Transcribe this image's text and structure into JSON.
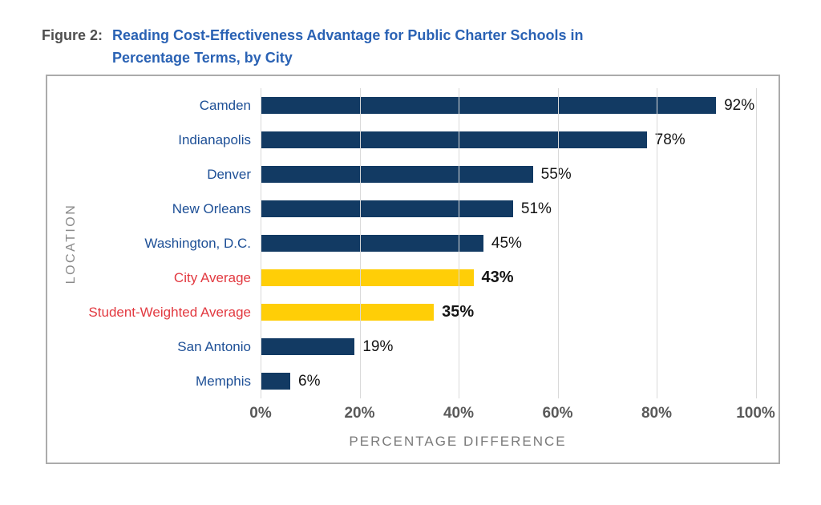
{
  "figure": {
    "label": "Figure 2:",
    "title": "Reading Cost-Effectiveness Advantage for Public Charter Schools in Percentage Terms, by City"
  },
  "chart_data": {
    "type": "bar",
    "orientation": "horizontal",
    "title": "Reading Cost-Effectiveness Advantage for Public Charter Schools in Percentage Terms, by City",
    "xlabel": "PERCENTAGE DIFFERENCE",
    "ylabel": "LOCATION",
    "xlim": [
      0,
      100
    ],
    "xticks": [
      {
        "value": 0,
        "label": "0%"
      },
      {
        "value": 20,
        "label": "20%"
      },
      {
        "value": 40,
        "label": "40%"
      },
      {
        "value": 60,
        "label": "60%"
      },
      {
        "value": 80,
        "label": "80%"
      },
      {
        "value": 100,
        "label": "100%"
      }
    ],
    "grid": "vertical",
    "categories": [
      "Camden",
      "Indianapolis",
      "Denver",
      "New Orleans",
      "Washington, D.C.",
      "City Average",
      "Student-Weighted Average",
      "San Antonio",
      "Memphis"
    ],
    "values": [
      92,
      78,
      55,
      51,
      45,
      43,
      35,
      19,
      6
    ],
    "rows": [
      {
        "label": "Camden",
        "value": 92,
        "display": "92%",
        "highlight": false
      },
      {
        "label": "Indianapolis",
        "value": 78,
        "display": "78%",
        "highlight": false
      },
      {
        "label": "Denver",
        "value": 55,
        "display": "55%",
        "highlight": false
      },
      {
        "label": "New Orleans",
        "value": 51,
        "display": "51%",
        "highlight": false
      },
      {
        "label": "Washington, D.C.",
        "value": 45,
        "display": "45%",
        "highlight": false
      },
      {
        "label": "City Average",
        "value": 43,
        "display": "43%",
        "highlight": true
      },
      {
        "label": "Student-Weighted Average",
        "value": 35,
        "display": "35%",
        "highlight": true
      },
      {
        "label": "San Antonio",
        "value": 19,
        "display": "19%",
        "highlight": false
      },
      {
        "label": "Memphis",
        "value": 6,
        "display": "6%",
        "highlight": false
      }
    ],
    "colors": {
      "bar": "#123a63",
      "bar_highlight": "#ffce07",
      "category_label": "#1d4f96",
      "category_label_highlight": "#e23940",
      "title_blue": "#2a62b4",
      "figure_label_gray": "#4f4f4f",
      "gridline": "#d9d9d9",
      "tick_gray": "#595959",
      "axis_title_gray": "#7a7a7a"
    }
  }
}
